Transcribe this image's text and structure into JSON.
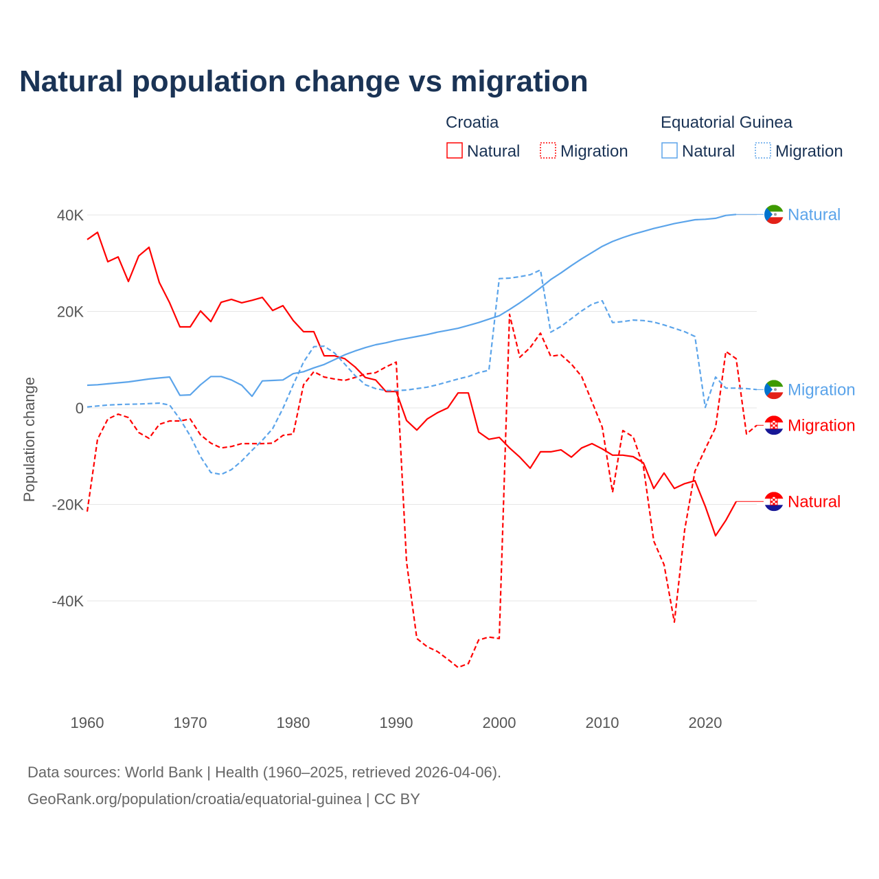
{
  "chart_data": {
    "type": "line",
    "title": "Natural population change vs migration",
    "xlabel": "",
    "ylabel": "Population change",
    "xlim": [
      1960,
      2025
    ],
    "ylim": [
      -55000,
      45000
    ],
    "x_ticks": [
      1960,
      1970,
      1980,
      1990,
      2000,
      2010,
      2020
    ],
    "x_tick_labels": [
      "1960",
      "1970",
      "1980",
      "1990",
      "2000",
      "2010",
      "2020"
    ],
    "y_ticks": [
      40000,
      20000,
      0,
      -20000,
      -40000
    ],
    "y_tick_labels": [
      "40K",
      "20K",
      "0",
      "-20K",
      "-40K"
    ],
    "grid": true,
    "legend_placement": "top-right",
    "legend": [
      {
        "group": "Croatia",
        "items": [
          "Natural",
          "Migration"
        ]
      },
      {
        "group": "Equatorial Guinea",
        "items": [
          "Natural",
          "Migration"
        ]
      }
    ],
    "series": [
      {
        "name": "Croatia Natural",
        "country": "Croatia",
        "label": "Natural",
        "color": "#ff0000",
        "dashed": false,
        "start": 1960,
        "values": [
          34900,
          36400,
          30300,
          31300,
          26200,
          31500,
          33300,
          26000,
          21800,
          16800,
          16800,
          20100,
          17900,
          21900,
          22500,
          21800,
          22300,
          22900,
          20200,
          21200,
          18100,
          15800,
          15800,
          10800,
          10800,
          10200,
          8500,
          6300,
          5800,
          3400,
          3400,
          -2600,
          -4600,
          -2300,
          -1000,
          0,
          3100,
          3100,
          -5000,
          -6500,
          -6100,
          -8300,
          -10200,
          -12500,
          -9100,
          -9100,
          -8700,
          -10200,
          -8300,
          -7400,
          -8500,
          -9800,
          -9800,
          -10100,
          -11400,
          -16700,
          -13500,
          -16700,
          -15700,
          -15100,
          -20400,
          -26500,
          -23300,
          -19400
        ]
      },
      {
        "name": "Croatia Migration",
        "country": "Croatia",
        "label": "Migration",
        "color": "#ff0000",
        "dashed": true,
        "start": 1960,
        "values": [
          -21500,
          -6500,
          -2300,
          -1300,
          -2000,
          -5100,
          -6300,
          -3400,
          -2700,
          -2700,
          -2300,
          -5600,
          -7300,
          -8300,
          -8000,
          -7400,
          -7400,
          -7400,
          -7300,
          -5700,
          -5400,
          4800,
          7500,
          6400,
          6000,
          5700,
          6300,
          7000,
          7300,
          8500,
          9500,
          -31900,
          -47800,
          -49500,
          -50500,
          -52100,
          -53800,
          -53000,
          -48100,
          -47500,
          -47800,
          19400,
          10500,
          12500,
          15500,
          10700,
          11000,
          9100,
          6500,
          1300,
          -4000,
          -17500,
          -4700,
          -6000,
          -12200,
          -27600,
          -32500,
          -44400,
          -25300,
          -13100,
          -8500,
          -4100,
          11700,
          10200,
          -5400,
          -3600
        ]
      },
      {
        "name": "Equatorial Guinea Natural",
        "country": "Equatorial Guinea",
        "label": "Natural",
        "color": "#5ba4ea",
        "dashed": false,
        "start": 1960,
        "values": [
          4700,
          4800,
          5000,
          5200,
          5400,
          5700,
          6000,
          6200,
          6400,
          2600,
          2700,
          4800,
          6500,
          6500,
          5800,
          4700,
          2400,
          5600,
          5700,
          5800,
          7100,
          7500,
          8300,
          9000,
          10000,
          11000,
          11800,
          12500,
          13100,
          13500,
          14000,
          14400,
          14800,
          15200,
          15700,
          16100,
          16500,
          17100,
          17700,
          18400,
          19100,
          20400,
          21800,
          23300,
          24900,
          26600,
          28000,
          29500,
          30900,
          32200,
          33500,
          34500,
          35300,
          36000,
          36600,
          37200,
          37700,
          38200,
          38600,
          39000,
          39100,
          39300,
          39900,
          40100
        ]
      },
      {
        "name": "Equatorial Guinea Migration",
        "country": "Equatorial Guinea",
        "label": "Migration",
        "color": "#5ba4ea",
        "dashed": true,
        "start": 1960,
        "values": [
          200,
          400,
          600,
          700,
          750,
          800,
          900,
          1000,
          600,
          -2300,
          -5800,
          -10100,
          -13400,
          -13800,
          -12800,
          -11000,
          -8800,
          -6700,
          -4300,
          -100,
          4800,
          9500,
          12700,
          12800,
          11400,
          9100,
          6700,
          4800,
          4000,
          3600,
          3600,
          3700,
          4000,
          4300,
          4800,
          5400,
          6000,
          6500,
          7300,
          7800,
          26800,
          26900,
          27200,
          27600,
          28600,
          15700,
          16900,
          18500,
          20100,
          21500,
          22200,
          17700,
          17900,
          18200,
          18100,
          17800,
          17200,
          16500,
          15800,
          14800,
          100,
          6400,
          4100,
          4100,
          4000,
          3800
        ]
      }
    ]
  },
  "source_line1": "Data sources: World Bank | Health (1960–2025, retrieved 2026-04-06).",
  "source_line2": "GeoRank.org/population/croatia/equatorial-guinea | CC BY"
}
